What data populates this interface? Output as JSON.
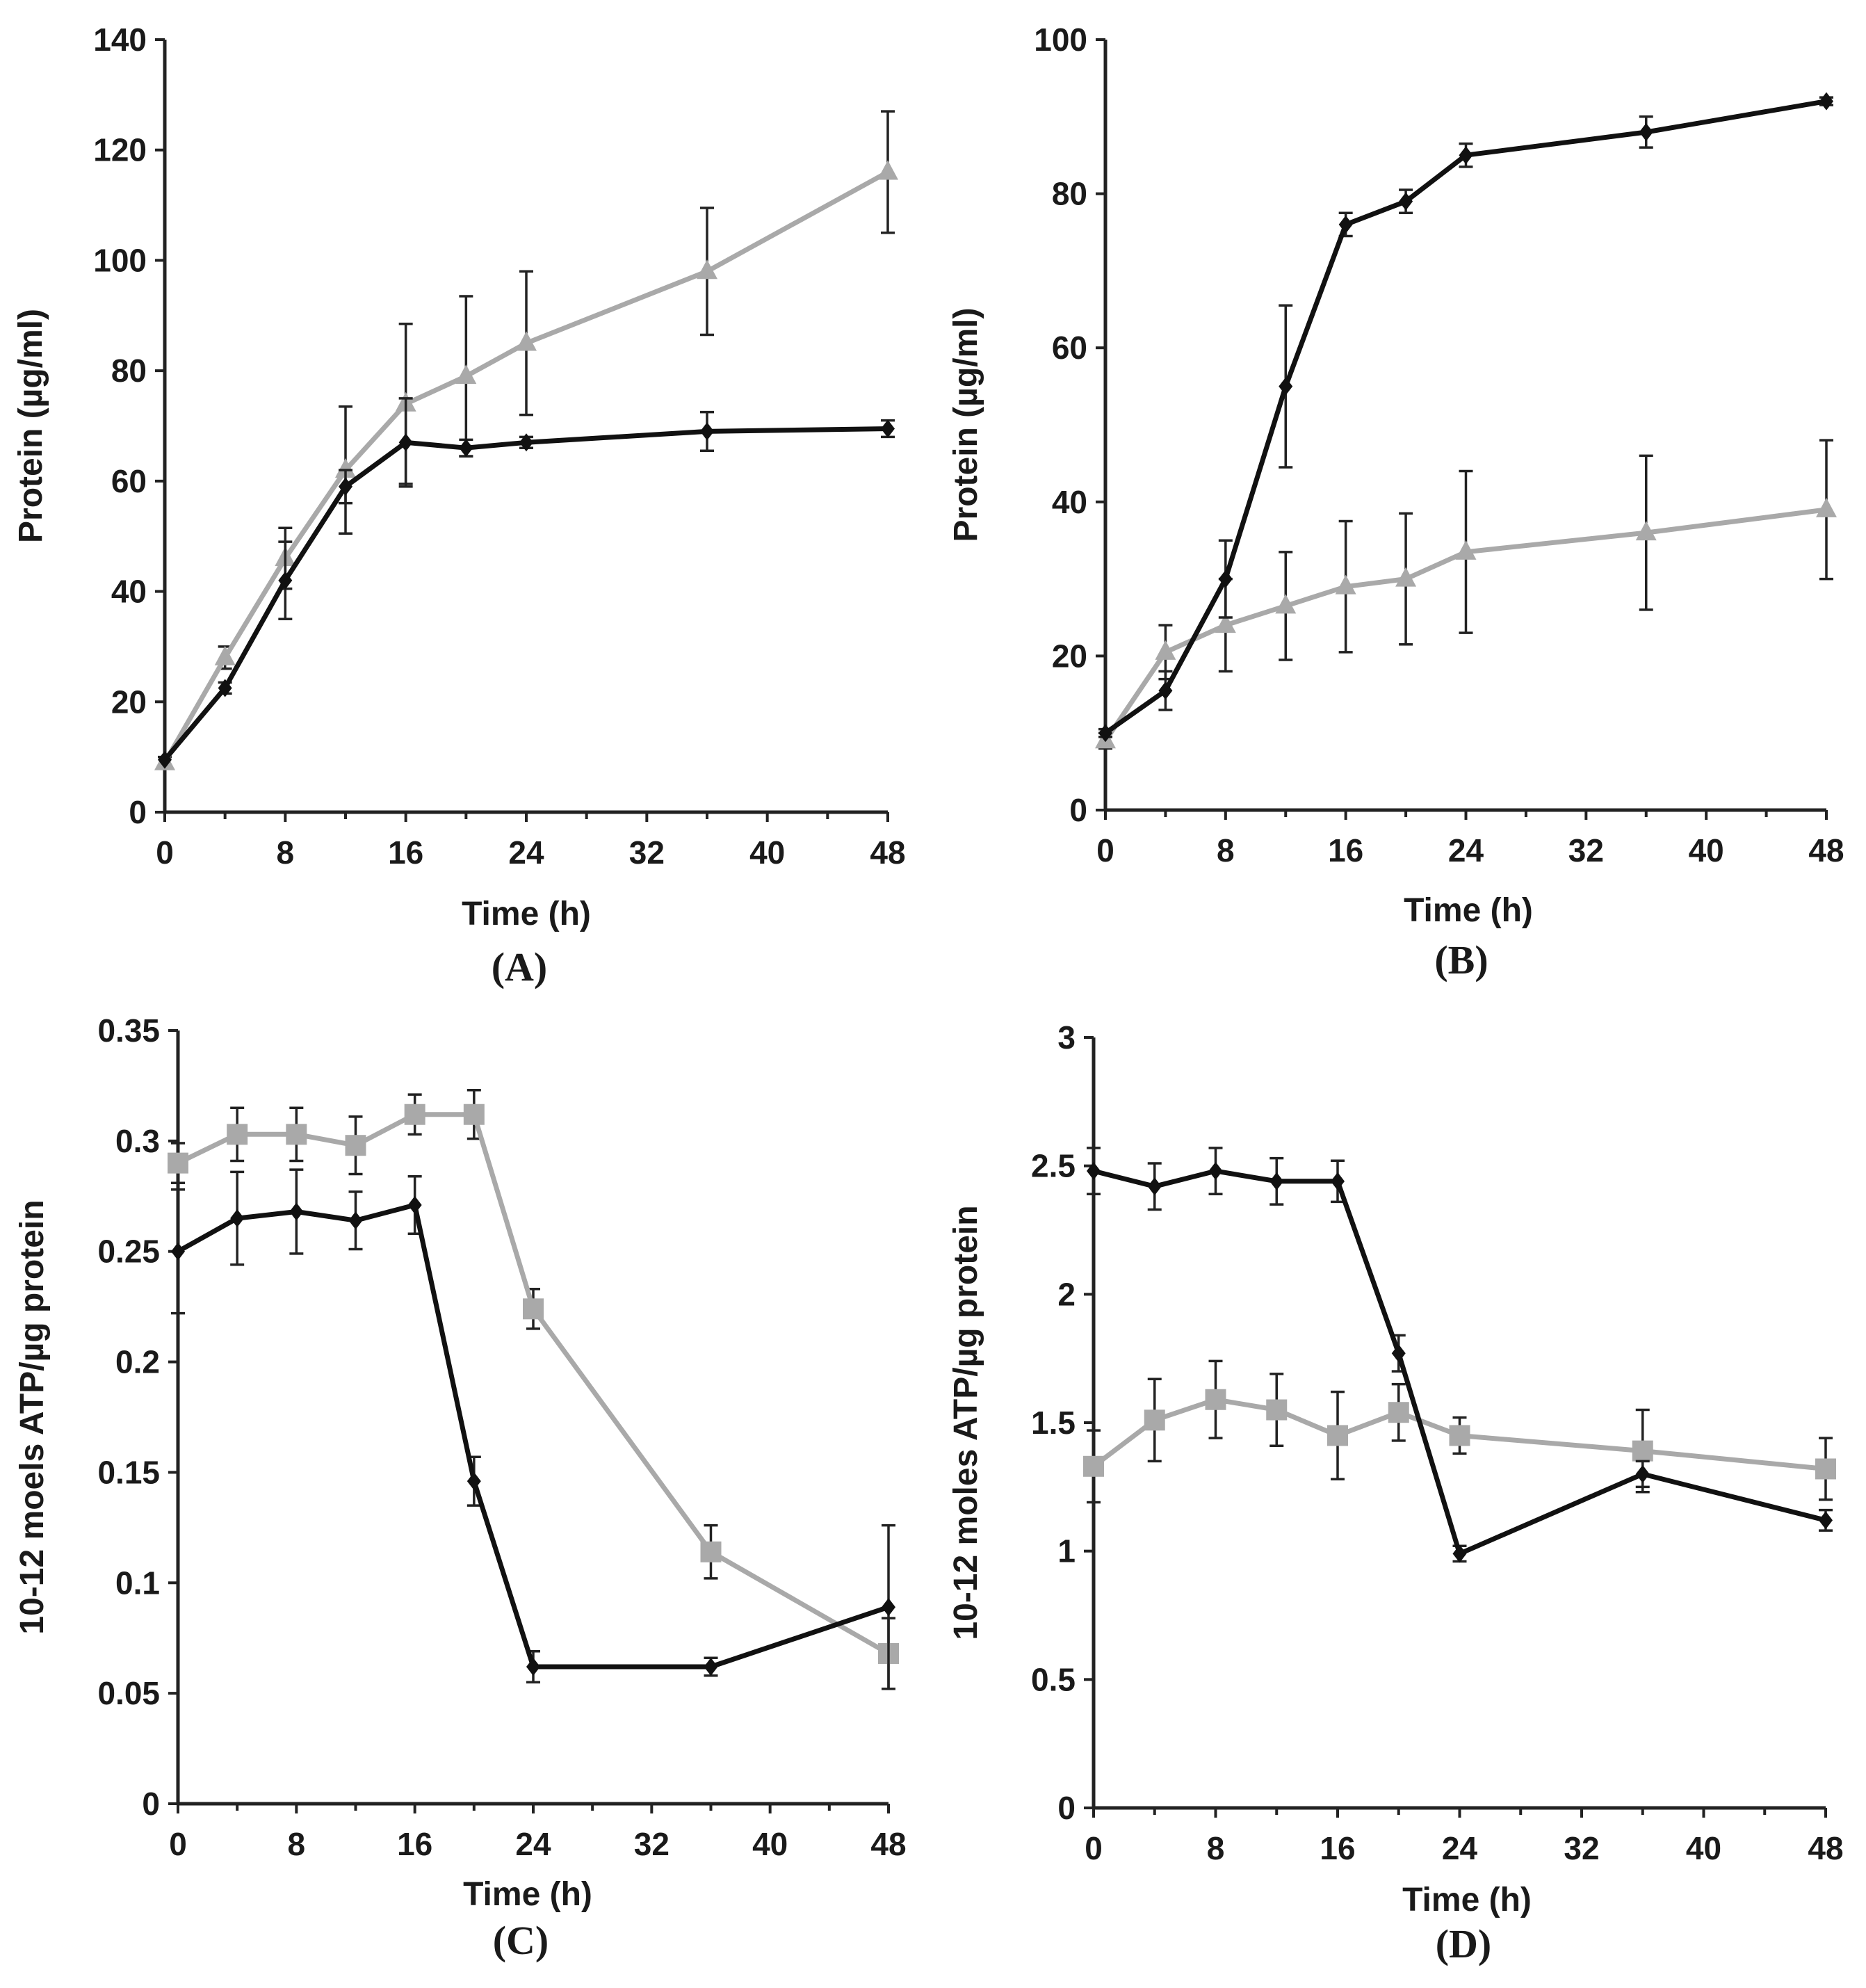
{
  "colors": {
    "black_series": "#111111",
    "gray_series": "#a9a9a9",
    "axis": "#222222"
  },
  "chart_data": [
    {
      "type": "line",
      "panel_label": "(A)",
      "xlabel": "Time (h)",
      "ylabel": "Protein (µg/ml)",
      "xlim": [
        0,
        48
      ],
      "ylim": [
        0,
        140
      ],
      "x_ticks": [
        0,
        8,
        16,
        24,
        32,
        40,
        48
      ],
      "x_tick_labels": [
        "0",
        "8",
        "16",
        "24",
        "32",
        "40",
        "48"
      ],
      "y_ticks": [
        0,
        20,
        40,
        60,
        80,
        100,
        120,
        140
      ],
      "y_tick_labels": [
        "0",
        "20",
        "40",
        "60",
        "80",
        "100",
        "120",
        "140"
      ],
      "series": [
        {
          "name": "black-diamond",
          "color": "#111111",
          "marker": "diamond",
          "x": [
            0,
            4,
            8,
            12,
            16,
            20,
            24,
            36,
            48
          ],
          "y": [
            9.5,
            22.5,
            42,
            59,
            67,
            66,
            67,
            69,
            69.5
          ],
          "err": [
            0,
            1,
            7,
            3,
            8,
            1.5,
            1,
            3.5,
            1.5
          ]
        },
        {
          "name": "gray-triangle",
          "color": "#a9a9a9",
          "marker": "triangle",
          "x": [
            0,
            4,
            8,
            12,
            16,
            20,
            24,
            36,
            48
          ],
          "y": [
            9,
            28,
            46,
            62,
            74,
            79,
            85,
            98,
            116
          ],
          "err": [
            1,
            2,
            5.5,
            11.5,
            14.5,
            14.5,
            13,
            11.5,
            11
          ]
        }
      ]
    },
    {
      "type": "line",
      "panel_label": "(B)",
      "xlabel": "Time (h)",
      "ylabel": "Protein (µg/ml)",
      "xlim": [
        0,
        48
      ],
      "ylim": [
        0,
        100
      ],
      "x_ticks": [
        0,
        8,
        16,
        24,
        32,
        40,
        48
      ],
      "x_tick_labels": [
        "0",
        "8",
        "16",
        "24",
        "32",
        "40",
        "48"
      ],
      "y_ticks": [
        0,
        20,
        40,
        60,
        80,
        100
      ],
      "y_tick_labels": [
        "0",
        "20",
        "40",
        "60",
        "80",
        "100"
      ],
      "series": [
        {
          "name": "black-diamond",
          "color": "#111111",
          "marker": "diamond",
          "x": [
            0,
            4,
            8,
            12,
            16,
            20,
            24,
            36,
            48
          ],
          "y": [
            10,
            15.5,
            30,
            55,
            76,
            79,
            85,
            88,
            92
          ],
          "err": [
            0.5,
            2.5,
            5,
            10.5,
            1.5,
            1.5,
            1.5,
            2,
            0.5
          ]
        },
        {
          "name": "gray-triangle",
          "color": "#a9a9a9",
          "marker": "triangle",
          "x": [
            0,
            4,
            8,
            12,
            16,
            20,
            24,
            36,
            48
          ],
          "y": [
            9,
            20.5,
            24,
            26.5,
            29,
            30,
            33.5,
            36,
            39
          ],
          "err": [
            1,
            3.5,
            6,
            7,
            8.5,
            8.5,
            10.5,
            10,
            9
          ]
        }
      ]
    },
    {
      "type": "line",
      "panel_label": "(C)",
      "xlabel": "Time (h)",
      "ylabel": "10-12  moels ATP/µg protein",
      "xlim": [
        0,
        48
      ],
      "ylim": [
        0,
        0.35
      ],
      "x_ticks": [
        0,
        8,
        16,
        24,
        32,
        40,
        48
      ],
      "x_tick_labels": [
        "0",
        "8",
        "16",
        "24",
        "32",
        "40",
        "48"
      ],
      "y_ticks": [
        0,
        0.05,
        0.1,
        0.15,
        0.2,
        0.25,
        0.3,
        0.35
      ],
      "y_tick_labels": [
        "0",
        "0.05",
        "0.1",
        "0.15",
        "0.2",
        "0.25",
        "0.3",
        "0.35"
      ],
      "series": [
        {
          "name": "black-diamond",
          "color": "#111111",
          "marker": "diamond",
          "x": [
            0,
            4,
            8,
            12,
            16,
            20,
            24,
            36,
            48
          ],
          "y": [
            0.25,
            0.265,
            0.268,
            0.264,
            0.271,
            0.146,
            0.062,
            0.062,
            0.089
          ],
          "err": [
            0.028,
            0.021,
            0.019,
            0.013,
            0.013,
            0.011,
            0.007,
            0.004,
            0.037
          ]
        },
        {
          "name": "gray-square",
          "color": "#a9a9a9",
          "marker": "square",
          "x": [
            0,
            4,
            8,
            12,
            16,
            20,
            24,
            36,
            48
          ],
          "y": [
            0.29,
            0.303,
            0.303,
            0.298,
            0.312,
            0.312,
            0.224,
            0.114,
            0.068
          ],
          "err": [
            0.009,
            0.012,
            0.012,
            0.013,
            0.009,
            0.011,
            0.009,
            0.012,
            0.016
          ]
        }
      ]
    },
    {
      "type": "line",
      "panel_label": "(D)",
      "xlabel": "Time (h)",
      "ylabel": "10-12  moles ATP/µg protein",
      "xlim": [
        0,
        48
      ],
      "ylim": [
        0,
        3
      ],
      "x_ticks": [
        0,
        8,
        16,
        24,
        32,
        40,
        48
      ],
      "x_tick_labels": [
        "0",
        "8",
        "16",
        "24",
        "32",
        "40",
        "48"
      ],
      "y_ticks": [
        0,
        0.5,
        1,
        1.5,
        2,
        2.5,
        3
      ],
      "y_tick_labels": [
        "0",
        "0.5",
        "1",
        "1.5",
        "2",
        "2.5",
        "3"
      ],
      "series": [
        {
          "name": "black-diamond",
          "color": "#111111",
          "marker": "diamond",
          "x": [
            0,
            4,
            8,
            12,
            16,
            20,
            24,
            36,
            48
          ],
          "y": [
            2.48,
            2.42,
            2.48,
            2.44,
            2.44,
            1.77,
            0.99,
            1.3,
            1.12
          ],
          "err": [
            0.09,
            0.09,
            0.09,
            0.09,
            0.08,
            0.07,
            0.03,
            0.05,
            0.04
          ]
        },
        {
          "name": "gray-square",
          "color": "#a9a9a9",
          "marker": "square",
          "x": [
            0,
            4,
            8,
            12,
            16,
            20,
            24,
            36,
            48
          ],
          "y": [
            1.33,
            1.51,
            1.59,
            1.55,
            1.45,
            1.54,
            1.45,
            1.39,
            1.32
          ],
          "err": [
            0.14,
            0.16,
            0.15,
            0.14,
            0.17,
            0.11,
            0.07,
            0.16,
            0.12
          ]
        }
      ]
    }
  ]
}
